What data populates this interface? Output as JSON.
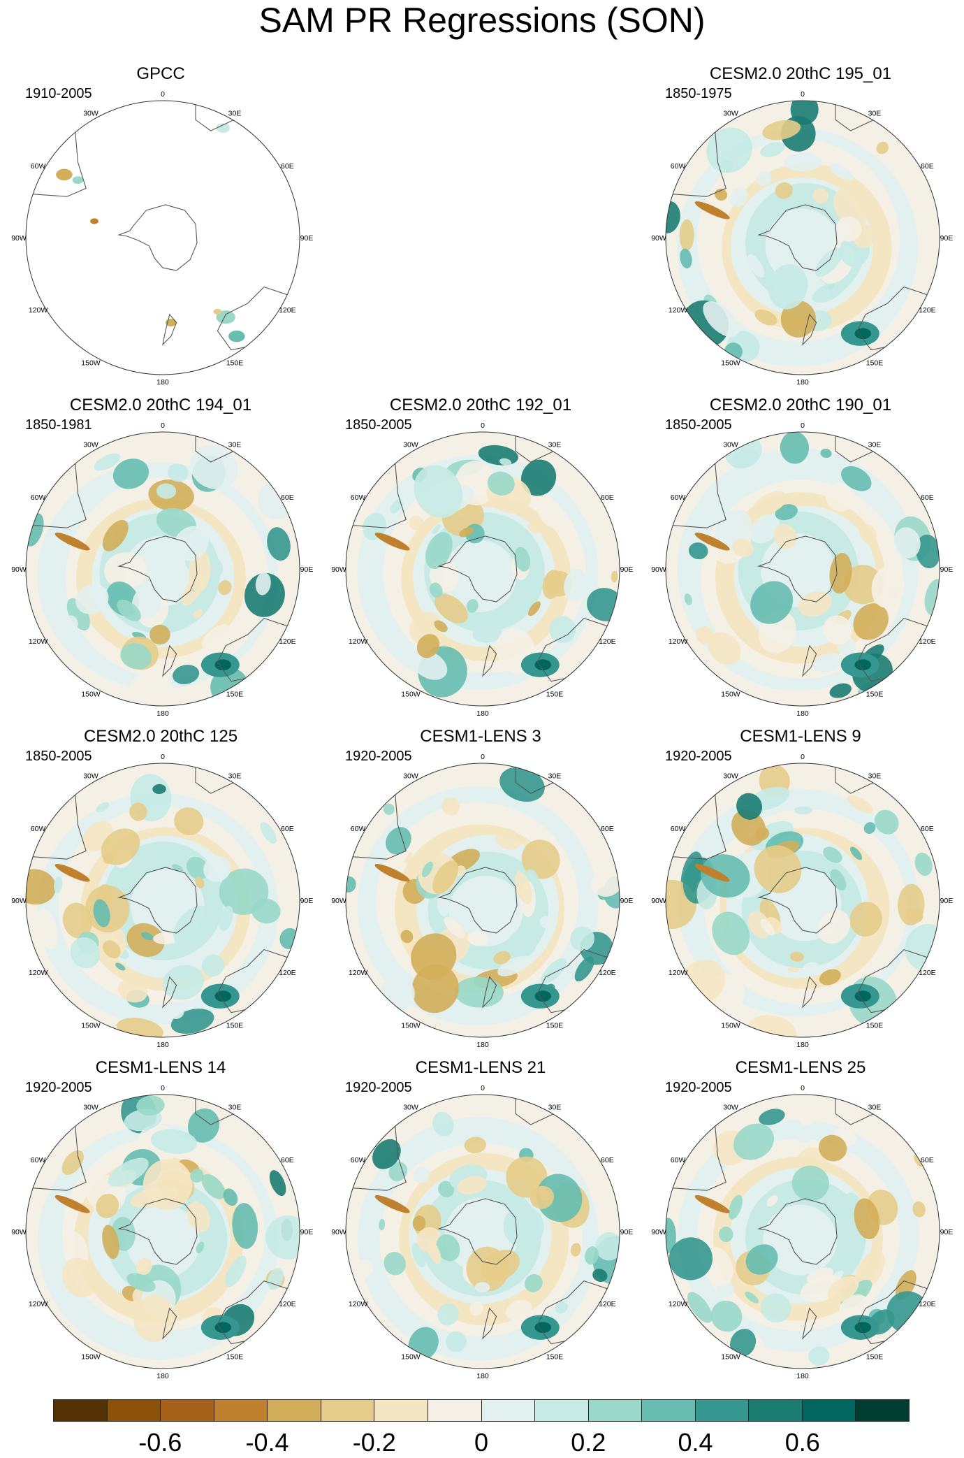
{
  "title": "SAM PR Regressions (SON)",
  "longitude_labels": [
    "0",
    "30E",
    "60E",
    "90E",
    "120E",
    "150E",
    "180",
    "150W",
    "120W",
    "90W",
    "60W",
    "30W"
  ],
  "colorbar": {
    "colors": [
      "#543005",
      "#8c510a",
      "#a6611a",
      "#bf812d",
      "#d2ae5a",
      "#e6cc8a",
      "#f5e6c3",
      "#f5f0e6",
      "#e2f0ef",
      "#c7eae5",
      "#99d8c9",
      "#66bdb0",
      "#35978f",
      "#1b7c72",
      "#01665e",
      "#003c30"
    ],
    "tick_labels": [
      "-0.6",
      "-0.4",
      "-0.2",
      "0",
      "0.2",
      "0.4",
      "0.6"
    ],
    "tick_values": [
      -0.6,
      -0.4,
      -0.2,
      0,
      0.2,
      0.4,
      0.6
    ],
    "range": [
      -0.8,
      0.8
    ]
  },
  "chart_data": [
    {
      "type": "heatmap",
      "title": "GPCC",
      "period": "1910-2005",
      "pattern": "obs"
    },
    {
      "type": "heatmap",
      "title": "CESM2.0 20thC 195_01",
      "period": "1850-1975",
      "pattern": "model"
    },
    {
      "type": "heatmap",
      "title": "CESM2.0 20thC 194_01",
      "period": "1850-1981",
      "pattern": "model"
    },
    {
      "type": "heatmap",
      "title": "CESM2.0 20thC 192_01",
      "period": "1850-2005",
      "pattern": "model"
    },
    {
      "type": "heatmap",
      "title": "CESM2.0 20thC 190_01",
      "period": "1850-2005",
      "pattern": "model"
    },
    {
      "type": "heatmap",
      "title": "CESM2.0 20thC 125",
      "period": "1850-2005",
      "pattern": "model"
    },
    {
      "type": "heatmap",
      "title": "CESM1-LENS 3",
      "period": "1920-2005",
      "pattern": "model"
    },
    {
      "type": "heatmap",
      "title": "CESM1-LENS 9",
      "period": "1920-2005",
      "pattern": "model"
    },
    {
      "type": "heatmap",
      "title": "CESM1-LENS 14",
      "period": "1920-2005",
      "pattern": "model"
    },
    {
      "type": "heatmap",
      "title": "CESM1-LENS 21",
      "period": "1920-2005",
      "pattern": "model"
    },
    {
      "type": "heatmap",
      "title": "CESM1-LENS 25",
      "period": "1920-2005",
      "pattern": "model"
    }
  ]
}
